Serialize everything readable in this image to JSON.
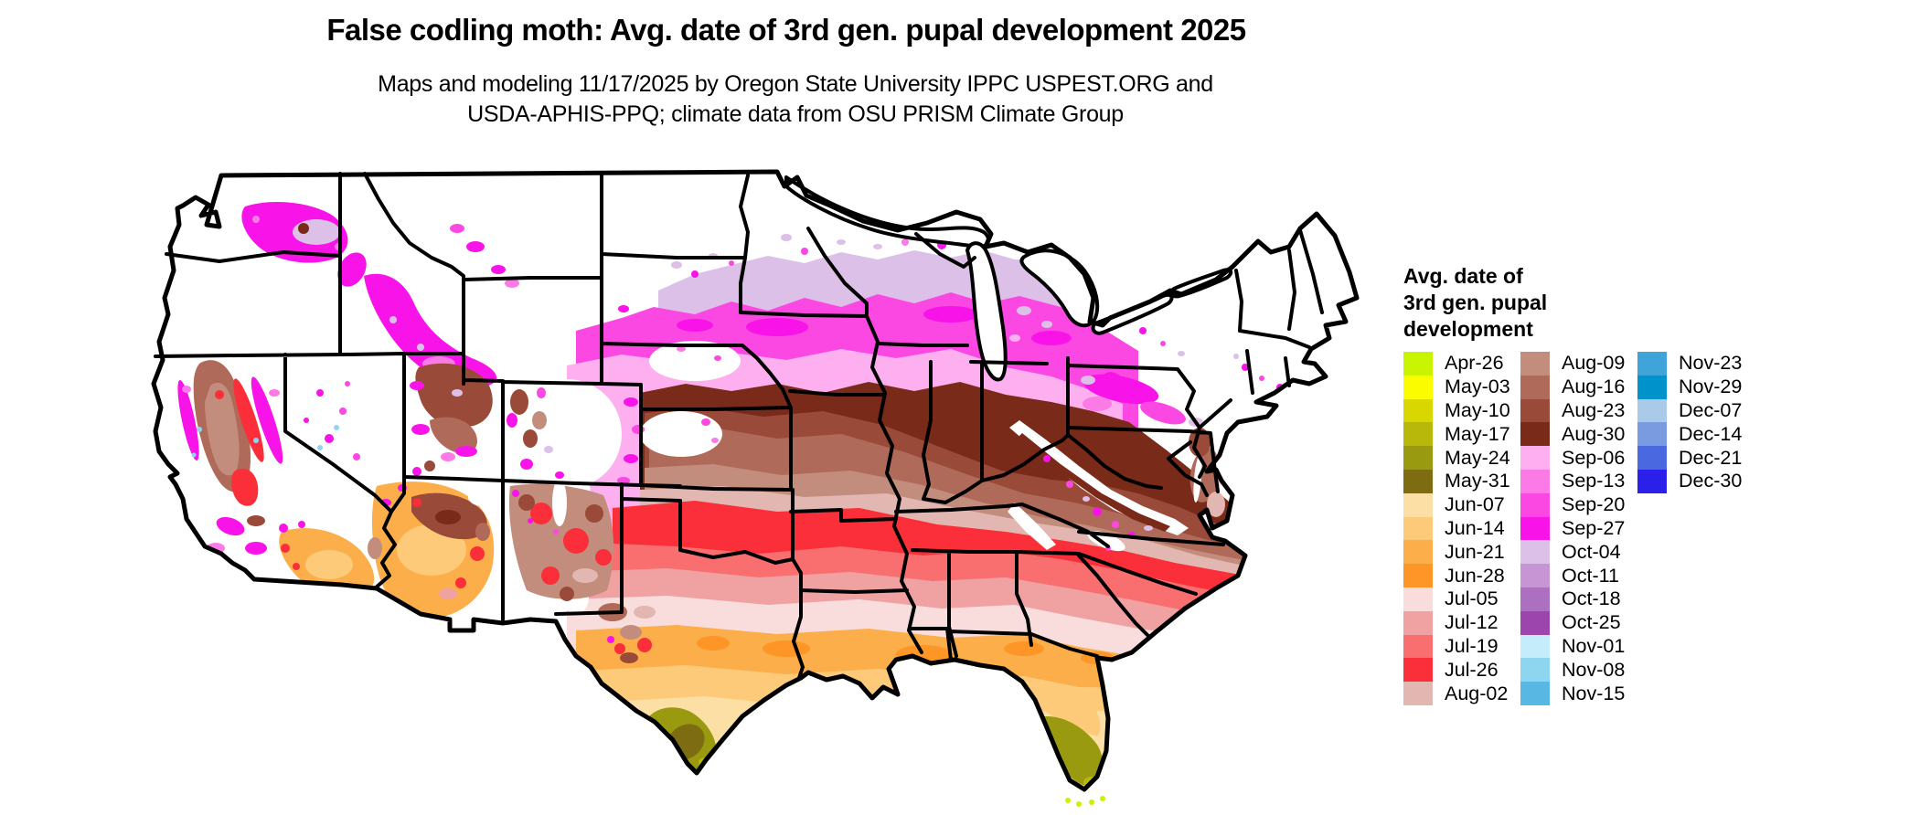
{
  "header": {
    "title": "False codling moth: Avg. date of 3rd gen. pupal development 2025",
    "subtitle_line1": "Maps and modeling 11/17/2025 by Oregon State University IPPC USPEST.ORG and",
    "subtitle_line2": "USDA-APHIS-PPQ; climate data from OSU PRISM Climate Group"
  },
  "legend": {
    "title_lines": [
      "Avg. date of",
      "3rd gen. pupal",
      "development"
    ],
    "columns": [
      {
        "entries": [
          {
            "label": "Apr-26",
            "color": "#c8f400"
          },
          {
            "label": "May-03",
            "color": "#fcfc00"
          },
          {
            "label": "May-10",
            "color": "#d8d800"
          },
          {
            "label": "May-17",
            "color": "#b8b80a"
          },
          {
            "label": "May-24",
            "color": "#9a9a10"
          },
          {
            "label": "May-31",
            "color": "#7e6c12"
          },
          {
            "label": "Jun-07",
            "color": "#fcdfa4"
          },
          {
            "label": "Jun-14",
            "color": "#fdca7a"
          },
          {
            "label": "Jun-21",
            "color": "#fcae4b"
          },
          {
            "label": "Jun-28",
            "color": "#fd9527"
          },
          {
            "label": "Jul-05",
            "color": "#f9dddd"
          },
          {
            "label": "Jul-12",
            "color": "#f0a2a2"
          },
          {
            "label": "Jul-19",
            "color": "#f96f6f"
          },
          {
            "label": "Jul-26",
            "color": "#fb2f39"
          },
          {
            "label": "Aug-02",
            "color": "#e3b7b1"
          }
        ]
      },
      {
        "entries": [
          {
            "label": "Aug-09",
            "color": "#c28d7d"
          },
          {
            "label": "Aug-16",
            "color": "#b06a5a"
          },
          {
            "label": "Aug-23",
            "color": "#9a4a38"
          },
          {
            "label": "Aug-30",
            "color": "#7a2a18"
          },
          {
            "label": "Sep-06",
            "color": "#fdaff0"
          },
          {
            "label": "Sep-13",
            "color": "#fc7ae6"
          },
          {
            "label": "Sep-20",
            "color": "#fb48e2"
          },
          {
            "label": "Sep-27",
            "color": "#f814e8"
          },
          {
            "label": "Oct-04",
            "color": "#dcc0e8"
          },
          {
            "label": "Oct-11",
            "color": "#c795d3"
          },
          {
            "label": "Oct-18",
            "color": "#ad6fc0"
          },
          {
            "label": "Oct-25",
            "color": "#9b45ad"
          },
          {
            "label": "Nov-01",
            "color": "#c4ecfa"
          },
          {
            "label": "Nov-08",
            "color": "#8ed6f0"
          },
          {
            "label": "Nov-15",
            "color": "#58b7e3"
          }
        ]
      },
      {
        "entries": [
          {
            "label": "Nov-23",
            "color": "#3fa5d8"
          },
          {
            "label": "Nov-29",
            "color": "#0092ca"
          },
          {
            "label": "Dec-07",
            "color": "#abc9e8"
          },
          {
            "label": "Dec-14",
            "color": "#7b9be0"
          },
          {
            "label": "Dec-21",
            "color": "#4a69e0"
          },
          {
            "label": "Dec-30",
            "color": "#2b20ea"
          }
        ]
      }
    ]
  },
  "map": {
    "description": "Continental US choropleth raster of average 3rd generation pupal development dates",
    "outline_color": "#000000",
    "no_data_color": "#ffffff"
  }
}
